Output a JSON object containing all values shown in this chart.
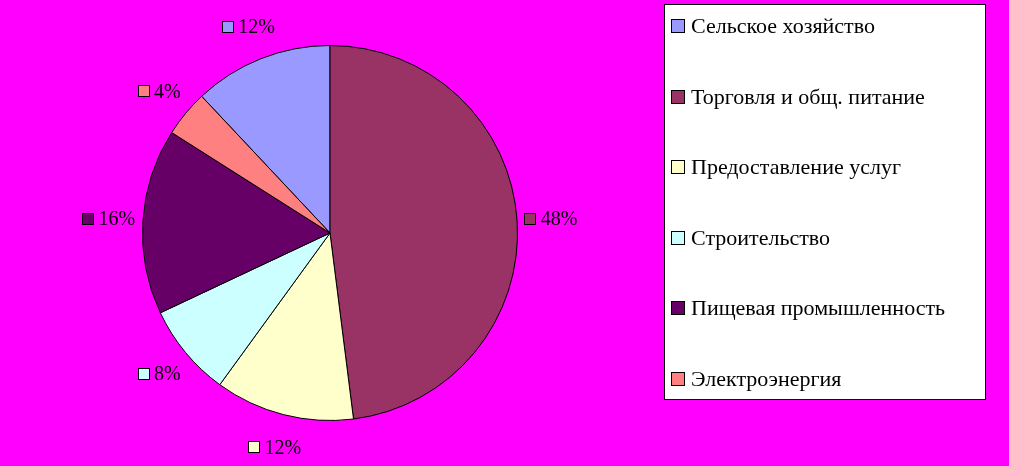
{
  "chart_data": {
    "type": "pie",
    "categories": [
      "Сельское хозяйство",
      "Торговля и общ. питание",
      "Предоставление услуг",
      "Строительство",
      "Пищевая промышленность",
      "Электроэнергия"
    ],
    "values": [
      12,
      48,
      12,
      8,
      16,
      4
    ],
    "colors": [
      "#9999ff",
      "#993366",
      "#ffffcc",
      "#ccffff",
      "#660066",
      "#ff8080"
    ],
    "value_labels": [
      "12%",
      "48%",
      "12%",
      "8%",
      "16%",
      "4%"
    ],
    "legend": "right"
  }
}
